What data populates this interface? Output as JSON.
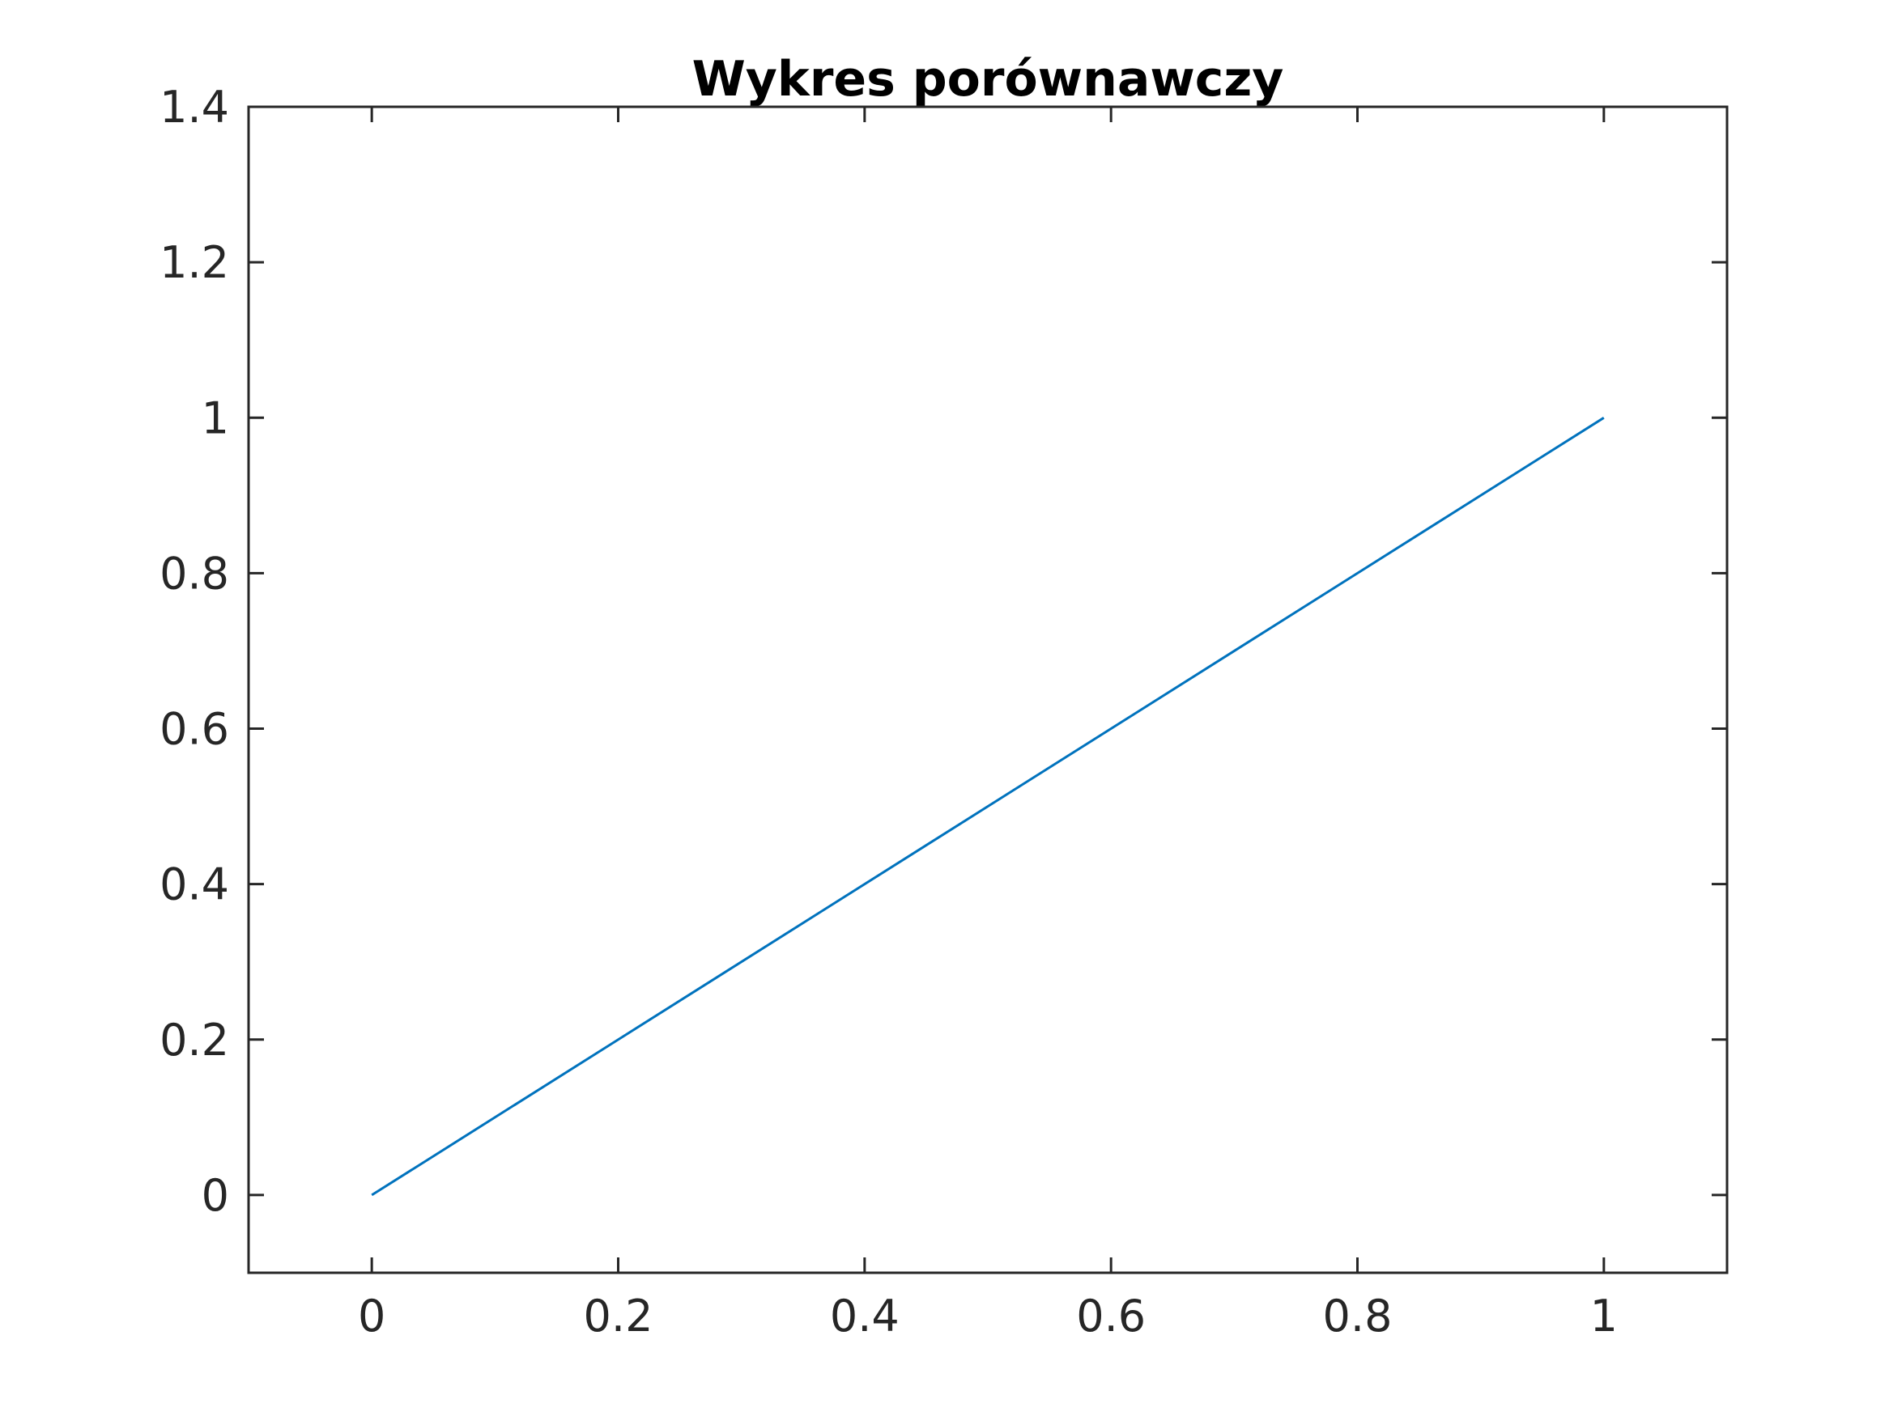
{
  "chart_data": {
    "type": "line",
    "title": "Wykres porównawczy",
    "xlabel": "",
    "ylabel": "",
    "xlim": [
      -0.1,
      1.1
    ],
    "ylim": [
      -0.1,
      1.4
    ],
    "x_ticks": [
      0,
      0.2,
      0.4,
      0.6,
      0.8,
      1
    ],
    "x_tick_labels": [
      "0",
      "0.2",
      "0.4",
      "0.6",
      "0.8",
      "1"
    ],
    "y_ticks": [
      0,
      0.2,
      0.4,
      0.6,
      0.8,
      1,
      1.2,
      1.4
    ],
    "y_tick_labels": [
      "0",
      "0.2",
      "0.4",
      "0.6",
      "0.8",
      "1",
      "1.2",
      "1.4"
    ],
    "grid": false,
    "legend": "none",
    "series": [
      {
        "color": "#0072BD",
        "x": [
          0,
          1
        ],
        "y": [
          0,
          1
        ]
      }
    ]
  }
}
